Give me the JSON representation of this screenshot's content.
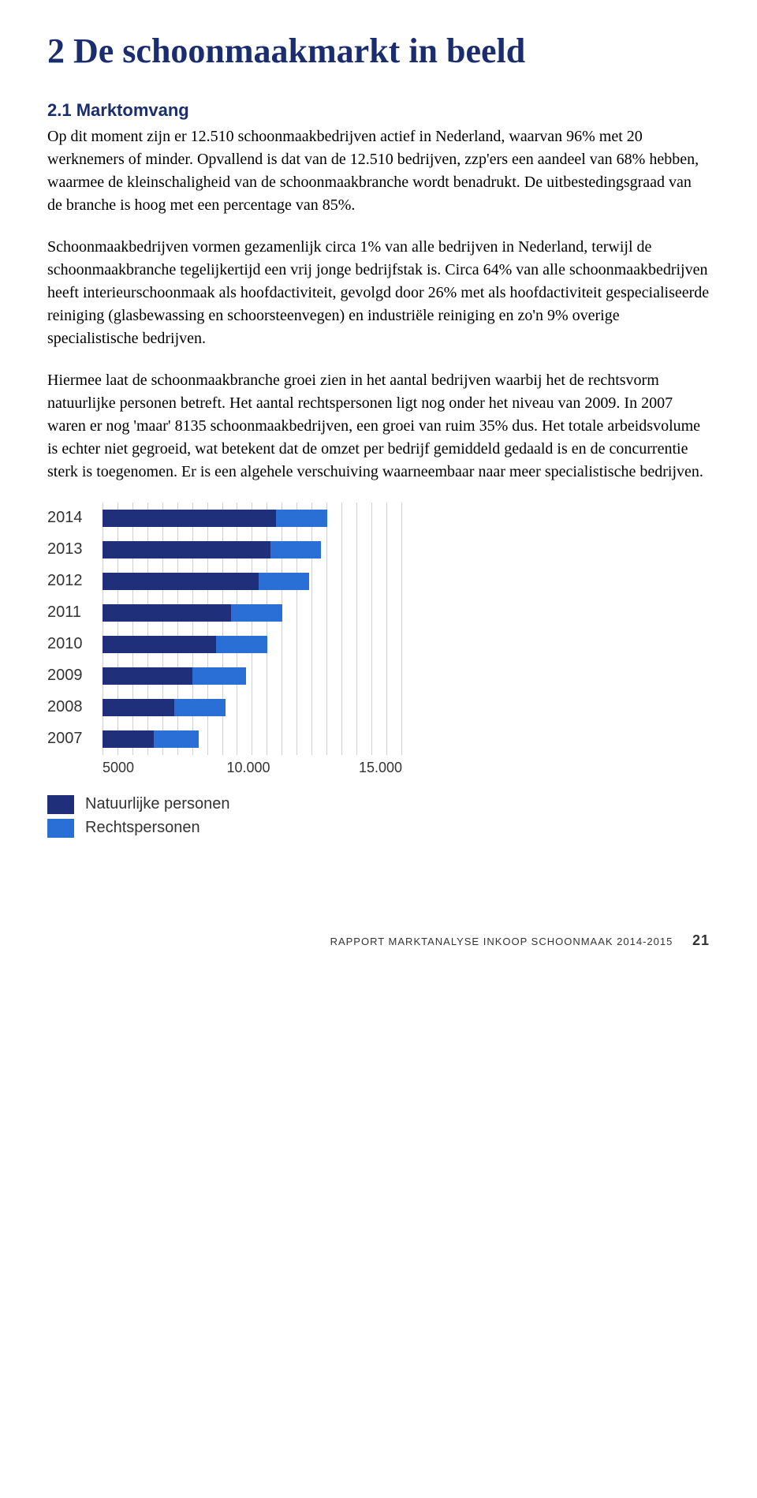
{
  "chapter_title": "2 De schoonmaakmarkt in beeld",
  "section_title": "2.1 Marktomvang",
  "para1": "Op dit moment zijn er 12.510 schoonmaakbedrijven actief in Nederland, waarvan 96% met 20 werknemers of minder. Opvallend is dat van de 12.510 bedrijven, zzp'ers een aandeel van 68% hebben, waarmee de kleinschaligheid van de schoonmaakbranche wordt benadrukt. De uitbestedingsgraad van de branche is hoog met een percentage van 85%.",
  "para2": "Schoonmaakbedrijven vormen gezamenlijk circa 1% van alle bedrijven in Nederland, terwijl de schoonmaakbranche tegelijkertijd een vrij jonge bedrijfstak is. Circa 64% van alle schoonmaakbedrijven heeft interieurschoonmaak als hoofdactiviteit, gevolgd door 26% met als hoofdactiviteit gespecialiseerde reiniging (glasbewassing en schoorsteenvegen) en industriële reiniging en zo'n 9% overige specialistische bedrijven.",
  "para3": "Hiermee laat de schoonmaakbranche groei zien in het aantal bedrijven waarbij het de rechtsvorm natuurlijke personen betreft. Het aantal rechtspersonen ligt nog onder het niveau van 2009. In 2007 waren er nog 'maar' 8135 schoonmaakbedrijven, een groei van ruim 35% dus. Het totale arbeidsvolume is echter niet gegroeid, wat betekent dat de omzet per bedrijf gemiddeld gedaald is en de concurrentie sterk is toegenomen. Er is een algehele verschuiving waarneembaar naar meer specialistische bedrijven.",
  "chart": {
    "type": "stacked-bar-horizontal",
    "x_min": 5000,
    "x_max": 15000,
    "x_ticks": [
      "5000",
      "10.000",
      "15.000"
    ],
    "grid_divisions": 20,
    "series_colors": {
      "natuurlijke": "#1f2f7a",
      "rechts": "#2a6fd6"
    },
    "years": [
      {
        "label": "2014",
        "natuurlijke": 10800,
        "rechts": 1700
      },
      {
        "label": "2013",
        "natuurlijke": 10600,
        "rechts": 1700
      },
      {
        "label": "2012",
        "natuurlijke": 10200,
        "rechts": 1700
      },
      {
        "label": "2011",
        "natuurlijke": 9300,
        "rechts": 1700
      },
      {
        "label": "2010",
        "natuurlijke": 8800,
        "rechts": 1700
      },
      {
        "label": "2009",
        "natuurlijke": 8000,
        "rechts": 1800
      },
      {
        "label": "2008",
        "natuurlijke": 7400,
        "rechts": 1700
      },
      {
        "label": "2007",
        "natuurlijke": 6700,
        "rechts": 1500
      }
    ],
    "legend": [
      {
        "color": "#1f2f7a",
        "label": "Natuurlijke personen"
      },
      {
        "color": "#2a6fd6",
        "label": "Rechtspersonen"
      }
    ]
  },
  "footer_text": "RAPPORT MARKTANALYSE INKOOP SCHOONMAAK 2014-2015",
  "page_number": "21"
}
